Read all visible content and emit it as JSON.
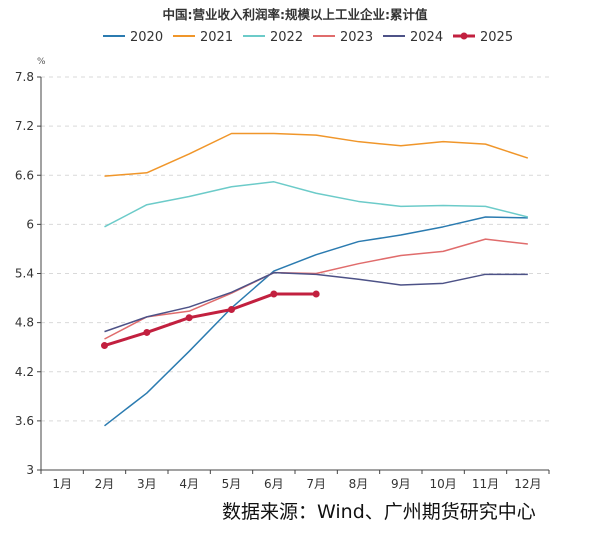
{
  "chart_data": {
    "type": "line",
    "title": "中国:营业收入利润率:规模以上工业企业:累计值",
    "ylabel": "%",
    "xlabel": "",
    "categories": [
      "1月",
      "2月",
      "3月",
      "4月",
      "5月",
      "6月",
      "7月",
      "8月",
      "9月",
      "10月",
      "11月",
      "12月"
    ],
    "y_ticks": [
      "3",
      "3.6",
      "4.2",
      "4.8",
      "5.4",
      "6",
      "6.6",
      "7.2",
      "7.8"
    ],
    "ylim": [
      3,
      7.8
    ],
    "grid": true,
    "legend_position": "top",
    "series": [
      {
        "name": "2020",
        "color": "#2b7bb0",
        "values": [
          null,
          3.54,
          3.94,
          4.45,
          4.98,
          5.43,
          5.63,
          5.79,
          5.87,
          5.97,
          6.09,
          6.08
        ]
      },
      {
        "name": "2021",
        "color": "#f0962a",
        "values": [
          null,
          6.59,
          6.63,
          6.86,
          7.11,
          7.11,
          7.09,
          7.01,
          6.96,
          7.01,
          6.98,
          6.81
        ]
      },
      {
        "name": "2022",
        "color": "#6ccbc9",
        "values": [
          null,
          5.97,
          6.24,
          6.34,
          6.46,
          6.52,
          6.38,
          6.28,
          6.22,
          6.23,
          6.22,
          6.09
        ]
      },
      {
        "name": "2023",
        "color": "#e06c6c",
        "values": [
          null,
          4.6,
          4.87,
          4.94,
          5.16,
          5.41,
          5.4,
          5.52,
          5.62,
          5.67,
          5.82,
          5.76
        ]
      },
      {
        "name": "2024",
        "color": "#4d5287",
        "values": [
          null,
          4.69,
          4.87,
          4.99,
          5.17,
          5.41,
          5.39,
          5.33,
          5.26,
          5.28,
          5.39,
          5.39
        ]
      },
      {
        "name": "2025",
        "color": "#c2203f",
        "values": [
          null,
          4.52,
          4.68,
          4.86,
          4.96,
          5.15,
          5.15,
          null,
          null,
          null,
          null,
          null
        ]
      }
    ]
  },
  "source_text": "数据来源：Wind、广州期货研究中心"
}
